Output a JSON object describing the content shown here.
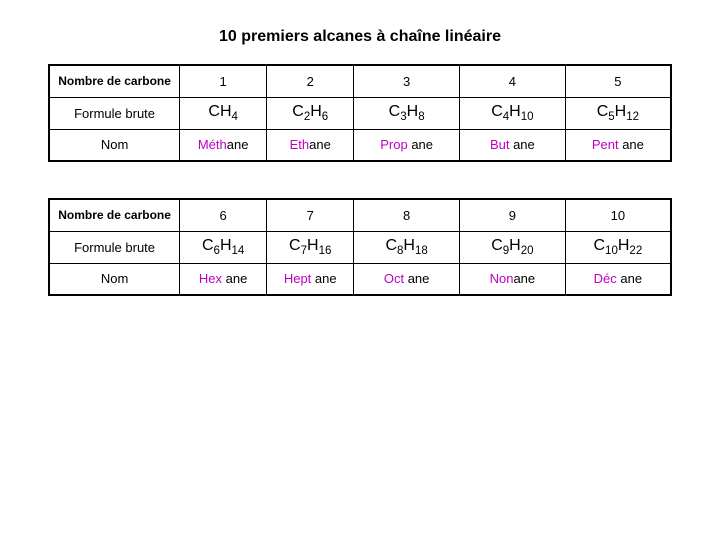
{
  "title": "10 premiers alcanes à chaîne linéaire",
  "labels": {
    "carbon": "Nombre de carbone",
    "formula": "Formule brute",
    "name": "Nom"
  },
  "suffix": "ane",
  "colors": {
    "prefix": "#c000c0",
    "text": "#000000",
    "border": "#000000",
    "background": "#ffffff"
  },
  "font": {
    "title_size": 16,
    "cell_size": 13,
    "formula_size": 16
  },
  "tables": [
    {
      "rows": [
        {
          "n": "1",
          "fC": "",
          "fH": "4",
          "prefix": "Méth"
        },
        {
          "n": "2",
          "fC": "2",
          "fH": "6",
          "prefix": "Eth"
        },
        {
          "n": "3",
          "fC": "3",
          "fH": "8",
          "prefix": "Prop"
        },
        {
          "n": "4",
          "fC": "4",
          "fH": "10",
          "prefix": "But"
        },
        {
          "n": "5",
          "fC": "5",
          "fH": "12",
          "prefix": "Pent"
        }
      ]
    },
    {
      "rows": [
        {
          "n": "6",
          "fC": "6",
          "fH": "14",
          "prefix": "Hex"
        },
        {
          "n": "7",
          "fC": "7",
          "fH": "16",
          "prefix": "Hept"
        },
        {
          "n": "8",
          "fC": "8",
          "fH": "18",
          "prefix": "Oct"
        },
        {
          "n": "9",
          "fC": "9",
          "fH": "20",
          "prefix": "Non"
        },
        {
          "n": "10",
          "fC": "10",
          "fH": "22",
          "prefix": "Déc"
        }
      ]
    }
  ]
}
